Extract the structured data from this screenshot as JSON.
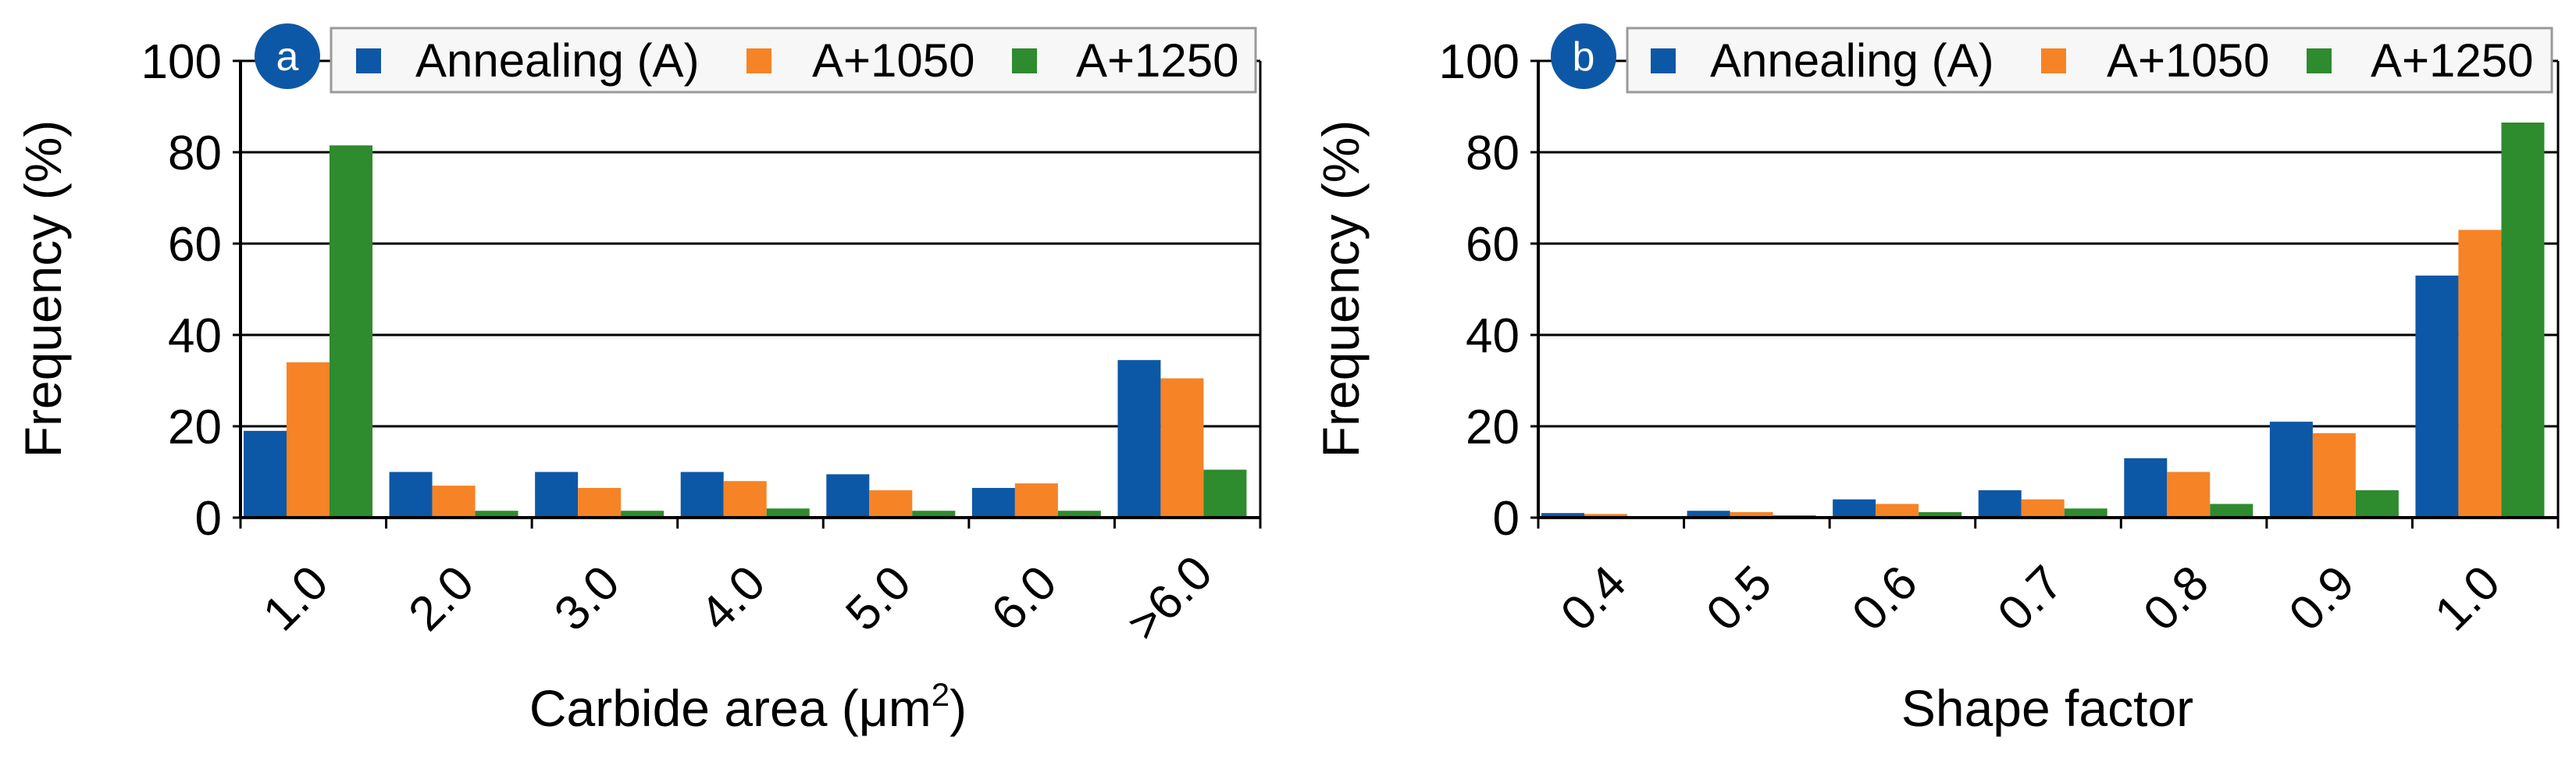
{
  "colors": {
    "annealing": "#0d58a6",
    "a1050": "#f68325",
    "a1250": "#2e8b2e",
    "badge": "#0d58a6",
    "grid": "#000000",
    "legend_border": "#9a9a9a"
  },
  "chart_data": [
    {
      "panel": "a",
      "type": "bar",
      "xlabel": "Carbide area (μm²)",
      "xlabel_main": "Carbide area (",
      "xlabel_unit": "μm",
      "xlabel_sup": "2",
      "xlabel_close": ")",
      "ylabel": "Frequency (%)",
      "ylim": [
        0,
        100
      ],
      "yticks": [
        "0",
        "20",
        "40",
        "60",
        "80",
        "100"
      ],
      "grid": true,
      "legend_position": "top",
      "categories": [
        "1.0",
        "2.0",
        "3.0",
        "4.0",
        "5.0",
        "6.0",
        ">6.0"
      ],
      "series": [
        {
          "name": "Annealing (A)",
          "color_key": "annealing",
          "values": [
            19,
            10,
            10,
            10,
            9.5,
            6.5,
            34.5
          ]
        },
        {
          "name": "A+1050",
          "color_key": "a1050",
          "values": [
            34,
            7,
            6.5,
            8,
            6,
            7.5,
            30.5
          ]
        },
        {
          "name": "A+1250",
          "color_key": "a1250",
          "values": [
            81.5,
            1.5,
            1.5,
            2,
            1.5,
            1.5,
            10.5
          ]
        }
      ]
    },
    {
      "panel": "b",
      "type": "bar",
      "xlabel": "Shape factor",
      "ylabel": "Frequency (%)",
      "ylim": [
        0,
        100
      ],
      "yticks": [
        "0",
        "20",
        "40",
        "60",
        "80",
        "100"
      ],
      "grid": true,
      "legend_position": "top",
      "categories": [
        "0.4",
        "0.5",
        "0.6",
        "0.7",
        "0.8",
        "0.9",
        "1.0"
      ],
      "series": [
        {
          "name": "Annealing (A)",
          "color_key": "annealing",
          "values": [
            1,
            1.5,
            4,
            6,
            13,
            21,
            53
          ]
        },
        {
          "name": "A+1050",
          "color_key": "a1050",
          "values": [
            0.8,
            1.2,
            3,
            4,
            10,
            18.5,
            63
          ]
        },
        {
          "name": "A+1250",
          "color_key": "a1250",
          "values": [
            0.3,
            0.5,
            1.2,
            2,
            3,
            6,
            86.5
          ]
        }
      ]
    }
  ]
}
